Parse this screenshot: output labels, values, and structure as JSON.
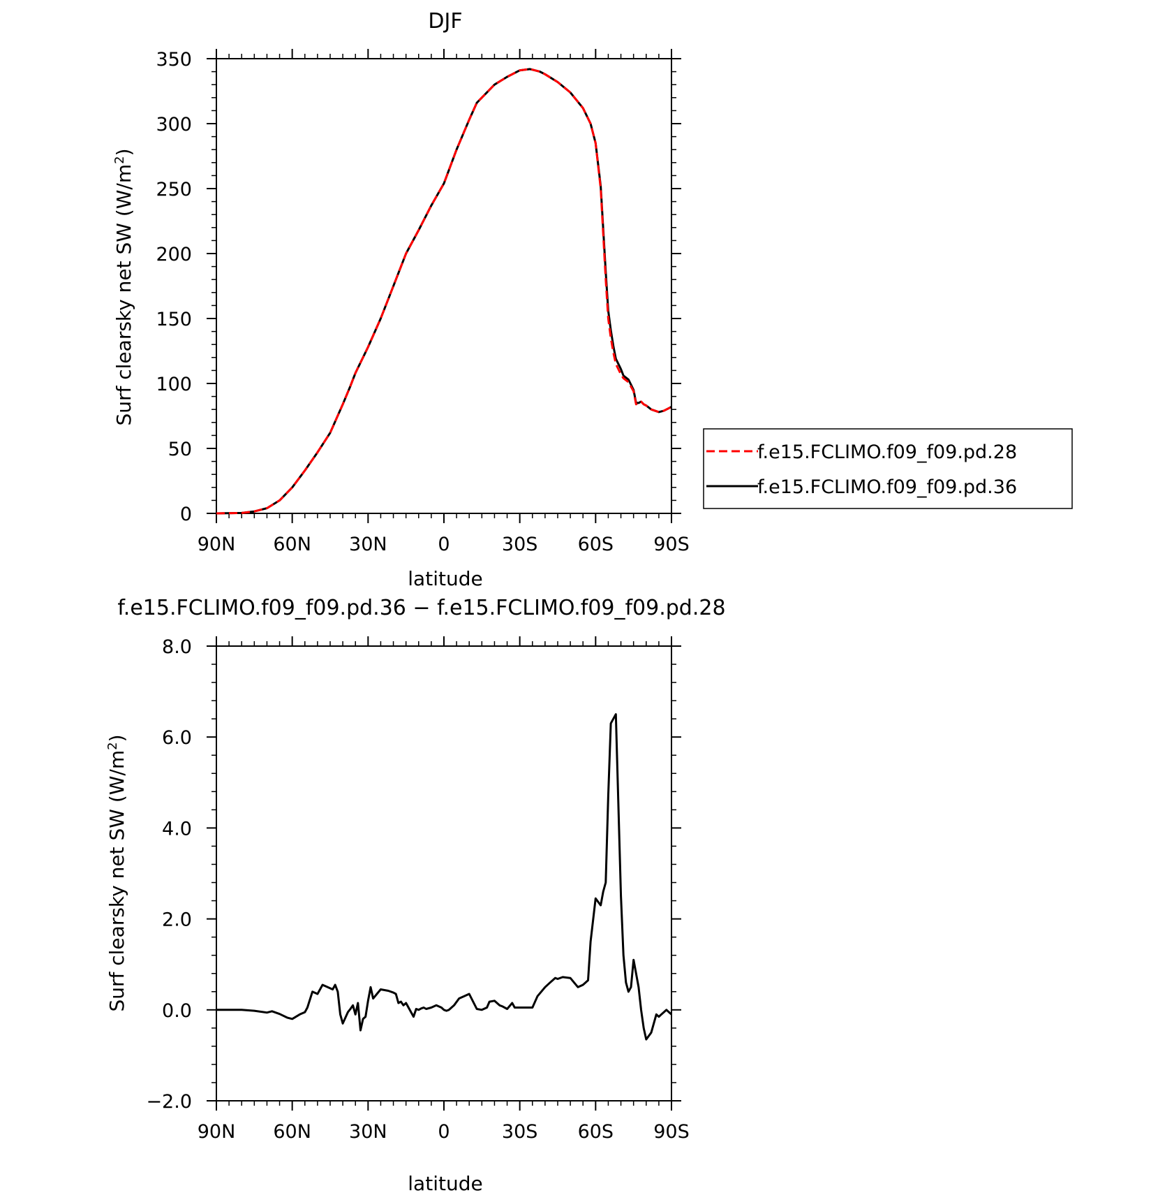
{
  "chart_data": [
    {
      "type": "line",
      "title": "DJF",
      "xlabel": "latitude",
      "ylabel": "Surf clearsky net SW (W/m",
      "ylabel_sup": "2",
      "ylabel_end": ")",
      "xlim": [
        90,
        -90
      ],
      "ylim": [
        0,
        350
      ],
      "x_ticks": [
        90,
        60,
        30,
        0,
        -30,
        -60,
        -90
      ],
      "x_tick_labels": [
        "90N",
        "60N",
        "30N",
        "0",
        "30S",
        "60S",
        "90S"
      ],
      "y_ticks": [
        0,
        50,
        100,
        150,
        200,
        250,
        300,
        350
      ],
      "y_tick_labels": [
        "0",
        "50",
        "100",
        "150",
        "200",
        "250",
        "300",
        "350"
      ],
      "legend_position": "right",
      "series": [
        {
          "name": "f.e15.FCLIMO.f09_f09.pd.28",
          "color": "#ff0000",
          "dash": "dashed",
          "x": [
            90,
            80,
            75,
            70,
            65,
            60,
            55,
            50,
            45,
            40,
            37,
            35,
            30,
            25,
            20,
            15,
            10,
            5,
            0,
            -5,
            -10,
            -13,
            -15,
            -20,
            -25,
            -30,
            -34,
            -36,
            -38,
            -40,
            -45,
            -50,
            -55,
            -58,
            -60,
            -62,
            -64,
            -65,
            -66,
            -67,
            -68,
            -70,
            -71,
            -73,
            -75,
            -76,
            -77,
            -78,
            -79,
            -80,
            -82,
            -85,
            -87,
            -88,
            -90
          ],
          "y": [
            0,
            0.3,
            1.5,
            4,
            10,
            20,
            33,
            47,
            62,
            84,
            98,
            108,
            128,
            150,
            175,
            200,
            218,
            237,
            254,
            280,
            303,
            316,
            320,
            330,
            336,
            341,
            342,
            341,
            340,
            338,
            332,
            324,
            312,
            300,
            285,
            250,
            180,
            150,
            135,
            124,
            115,
            107,
            104,
            101,
            94,
            84,
            85,
            86,
            84,
            83,
            80,
            78,
            79,
            80,
            82
          ]
        },
        {
          "name": "f.e15.FCLIMO.f09_f09.pd.36",
          "color": "#000000",
          "dash": "solid",
          "x": [
            90,
            80,
            75,
            70,
            65,
            60,
            55,
            50,
            45,
            40,
            37,
            35,
            30,
            25,
            20,
            15,
            10,
            5,
            0,
            -5,
            -10,
            -13,
            -15,
            -20,
            -25,
            -30,
            -34,
            -36,
            -38,
            -40,
            -45,
            -50,
            -55,
            -58,
            -60,
            -62,
            -64,
            -65,
            -66,
            -67,
            -68,
            -70,
            -71,
            -73,
            -75,
            -76,
            -77,
            -78,
            -79,
            -80,
            -82,
            -85,
            -87,
            -88,
            -90
          ],
          "y": [
            0,
            0.3,
            1.5,
            4,
            10,
            20,
            33,
            47,
            62,
            84,
            98,
            108,
            128,
            150,
            175,
            200,
            218,
            237,
            254,
            280,
            303,
            316,
            320,
            330,
            336,
            341,
            342,
            341,
            340,
            338,
            332,
            324,
            312,
            300,
            285,
            252,
            186,
            156,
            141,
            129,
            119,
            111,
            106,
            103,
            95,
            85,
            85,
            86,
            84,
            83,
            80,
            78,
            79,
            80,
            82
          ]
        }
      ]
    },
    {
      "type": "line",
      "title": "f.e15.FCLIMO.f09_f09.pd.36 − f.e15.FCLIMO.f09_f09.pd.28",
      "xlabel": "latitude",
      "ylabel": "Surf clearsky net SW (W/m",
      "ylabel_sup": "2",
      "ylabel_end": ")",
      "xlim": [
        90,
        -90
      ],
      "ylim": [
        -2,
        8
      ],
      "x_ticks": [
        90,
        60,
        30,
        0,
        -30,
        -60,
        -90
      ],
      "x_tick_labels": [
        "90N",
        "60N",
        "30N",
        "0",
        "30S",
        "60S",
        "90S"
      ],
      "y_ticks": [
        -2,
        0,
        2,
        4,
        6,
        8
      ],
      "y_tick_labels": [
        "−2.0",
        "0.0",
        "2.0",
        "4.0",
        "6.0",
        "8.0"
      ],
      "series": [
        {
          "color": "#000000",
          "dash": "solid",
          "x": [
            90,
            80,
            75,
            70,
            68,
            65,
            62,
            60,
            57,
            55,
            54,
            52,
            50,
            48,
            46,
            44,
            43,
            42,
            41,
            40,
            38,
            37,
            36,
            35,
            34,
            33,
            32,
            31,
            30,
            29,
            28,
            25,
            22,
            20,
            19,
            18,
            17,
            16,
            15,
            13,
            12,
            11,
            10,
            9,
            8,
            7,
            5,
            3,
            1,
            0,
            -1,
            -2,
            -4,
            -6,
            -8,
            -10,
            -13,
            -15,
            -17,
            -18,
            -20,
            -22,
            -23,
            -25,
            -27,
            -28,
            -30,
            -32,
            -33,
            -35,
            -37,
            -40,
            -42,
            -44,
            -45,
            -47,
            -50,
            -53,
            -55,
            -57,
            -58,
            -60,
            -62,
            -63,
            -64,
            -65,
            -66,
            -68,
            -70,
            -71,
            -72,
            -73,
            -74,
            -75,
            -76,
            -77,
            -78,
            -79,
            -80,
            -82,
            -84,
            -85,
            -86,
            -87,
            -88,
            -89,
            -90
          ],
          "y": [
            0,
            0,
            -0.02,
            -0.06,
            -0.03,
            -0.09,
            -0.17,
            -0.2,
            -0.1,
            -0.05,
            0.05,
            0.4,
            0.35,
            0.55,
            0.5,
            0.45,
            0.55,
            0.4,
            -0.1,
            -0.3,
            -0.05,
            0.02,
            0.1,
            -0.1,
            0.15,
            -0.45,
            -0.2,
            -0.15,
            0.2,
            0.5,
            0.25,
            0.45,
            0.42,
            0.38,
            0.35,
            0.15,
            0.18,
            0.1,
            0.15,
            -0.05,
            -0.15,
            0.02,
            0.0,
            0.03,
            0.05,
            0.02,
            0.05,
            0.1,
            0.05,
            0.0,
            -0.02,
            0.0,
            0.1,
            0.25,
            0.3,
            0.35,
            0.02,
            0.0,
            0.05,
            0.18,
            0.2,
            0.1,
            0.08,
            0.02,
            0.15,
            0.05,
            0.05,
            0.05,
            0.05,
            0.05,
            0.3,
            0.5,
            0.6,
            0.7,
            0.68,
            0.72,
            0.7,
            0.5,
            0.55,
            0.65,
            1.5,
            2.45,
            2.3,
            2.6,
            2.8,
            4.7,
            6.3,
            6.5,
            2.5,
            1.2,
            0.6,
            0.4,
            0.5,
            1.1,
            0.8,
            0.5,
            0.0,
            -0.4,
            -0.65,
            -0.5,
            -0.1,
            -0.15,
            -0.1,
            -0.05,
            0.0,
            -0.05,
            -0.1
          ]
        }
      ]
    }
  ]
}
